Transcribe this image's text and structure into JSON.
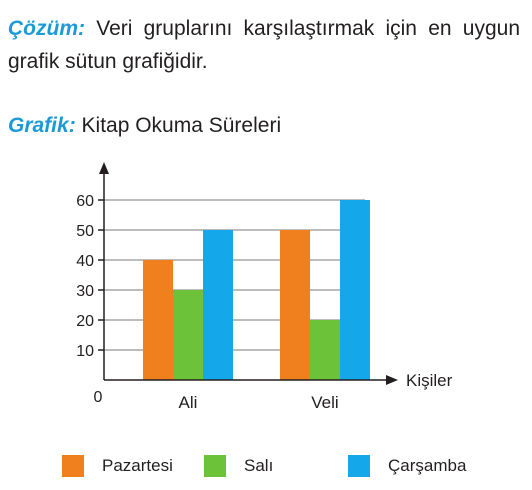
{
  "solution": {
    "label": "Çözüm:",
    "text": " Veri gruplarını karşılaştırmak için en uygun grafik sütun grafiğidir."
  },
  "graph": {
    "label": "Grafik:",
    "title": " Kitap Okuma Süreleri"
  },
  "colors": {
    "accent": "#1b9ad6",
    "axis": "#231f20",
    "grid": "#7a7a7a"
  },
  "chart_data": {
    "type": "bar",
    "title": "Kitap Okuma Süreleri",
    "xlabel": "Kişiler",
    "ylabel": "",
    "categories": [
      "Ali",
      "Veli"
    ],
    "series": [
      {
        "name": "Pazartesi",
        "values": [
          40,
          50
        ],
        "color": "#f07f1d"
      },
      {
        "name": "Salı",
        "values": [
          30,
          20
        ],
        "color": "#6cc33a"
      },
      {
        "name": "Çarşamba",
        "values": [
          50,
          60
        ],
        "color": "#14a8ea"
      }
    ],
    "ylim": [
      0,
      60
    ],
    "yticks": [
      10,
      20,
      30,
      40,
      50,
      60
    ],
    "origin_label": "0",
    "grid": true,
    "legend_position": "bottom"
  }
}
